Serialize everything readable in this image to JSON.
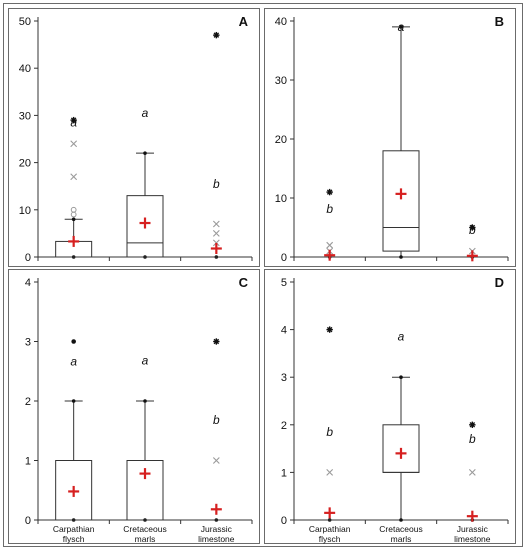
{
  "chart_data": [
    {
      "panel": "A",
      "type": "box",
      "categories": [
        "Carpathian flysch",
        "Cretaceous marls",
        "Jurassic limestone"
      ],
      "ylim": [
        0,
        50
      ],
      "yticks": [
        0,
        10,
        20,
        30,
        40,
        50
      ],
      "show_xlabels": false,
      "boxes": [
        {
          "category": "Carpathian flysch",
          "whisker_low": 0,
          "q1": 0,
          "median": 0,
          "q3": 3.3,
          "whisker_high": 8,
          "mean": 3.3,
          "letter": "a",
          "outliers": [
            {
              "value": 29,
              "mark": "star"
            },
            {
              "value": 24,
              "mark": "x"
            },
            {
              "value": 17,
              "mark": "x"
            },
            {
              "value": 10,
              "mark": "circle"
            },
            {
              "value": 9,
              "mark": "circle"
            }
          ]
        },
        {
          "category": "Cretaceous marls",
          "whisker_low": 0,
          "q1": 0,
          "median": 3,
          "q3": 13,
          "whisker_high": 22,
          "mean": 7.2,
          "letter": "a",
          "outliers": []
        },
        {
          "category": "Jurassic limestone",
          "whisker_low": 0,
          "q1": 0,
          "median": 0,
          "q3": 0,
          "whisker_high": 0,
          "mean": 1.8,
          "letter": "b",
          "outliers": [
            {
              "value": 47,
              "mark": "star"
            },
            {
              "value": 7,
              "mark": "x"
            },
            {
              "value": 5,
              "mark": "x"
            },
            {
              "value": 3,
              "mark": "x"
            }
          ]
        }
      ]
    },
    {
      "panel": "B",
      "type": "box",
      "categories": [
        "Carpathian flysch",
        "Cretaceous marls",
        "Jurassic limestone"
      ],
      "ylim": [
        0,
        40
      ],
      "yticks": [
        0,
        10,
        20,
        30,
        40
      ],
      "show_xlabels": false,
      "boxes": [
        {
          "category": "Carpathian flysch",
          "whisker_low": 0,
          "q1": 0,
          "median": 0,
          "q3": 0,
          "whisker_high": 0,
          "mean": 0.3,
          "letter": "b",
          "outliers": [
            {
              "value": 11,
              "mark": "star"
            },
            {
              "value": 2,
              "mark": "x"
            },
            {
              "value": 1,
              "mark": "x"
            }
          ]
        },
        {
          "category": "Cretaceous marls",
          "whisker_low": 0,
          "q1": 1,
          "median": 5,
          "q3": 18,
          "whisker_high": 39,
          "mean": 10.7,
          "letter": "a",
          "outliers": []
        },
        {
          "category": "Jurassic limestone",
          "whisker_low": 0,
          "q1": 0,
          "median": 0,
          "q3": 0,
          "whisker_high": 0,
          "mean": 0.2,
          "letter": "b",
          "outliers": [
            {
              "value": 5,
              "mark": "star"
            },
            {
              "value": 1,
              "mark": "x"
            }
          ]
        }
      ]
    },
    {
      "panel": "C",
      "type": "box",
      "categories": [
        "Carpathian flysch",
        "Cretaceous marls",
        "Jurassic limestone"
      ],
      "xlabels": [
        [
          "Carpathian",
          "flysch"
        ],
        [
          "Cretaceous",
          "marls"
        ],
        [
          "Jurassic",
          "limestone"
        ]
      ],
      "ylim": [
        0,
        4
      ],
      "yticks": [
        0,
        1,
        2,
        3,
        4
      ],
      "show_xlabels": true,
      "boxes": [
        {
          "category": "Carpathian flysch",
          "whisker_low": 0,
          "q1": 0,
          "median": 0,
          "q3": 1,
          "whisker_high": 2,
          "mean": 0.48,
          "letter": "a",
          "outliers": [
            {
              "value": 3,
              "mark": "dot"
            }
          ]
        },
        {
          "category": "Cretaceous marls",
          "whisker_low": 0,
          "q1": 0,
          "median": 1,
          "q3": 1,
          "whisker_high": 2,
          "mean": 0.78,
          "letter": "a",
          "outliers": []
        },
        {
          "category": "Jurassic limestone",
          "whisker_low": 0,
          "q1": 0,
          "median": 0,
          "q3": 0,
          "whisker_high": 0,
          "mean": 0.18,
          "letter": "b",
          "outliers": [
            {
              "value": 3,
              "mark": "star"
            },
            {
              "value": 1,
              "mark": "x"
            }
          ]
        }
      ]
    },
    {
      "panel": "D",
      "type": "box",
      "categories": [
        "Carpathian flysch",
        "Cretaceous marls",
        "Jurassic limestone"
      ],
      "xlabels": [
        [
          "Carpathian",
          "flysch"
        ],
        [
          "Cretaceous",
          "marls"
        ],
        [
          "Jurassic",
          "limestone"
        ]
      ],
      "ylim": [
        0,
        5
      ],
      "yticks": [
        0,
        1,
        2,
        3,
        4,
        5
      ],
      "show_xlabels": true,
      "boxes": [
        {
          "category": "Carpathian flysch",
          "whisker_low": 0,
          "q1": 0,
          "median": 0,
          "q3": 0,
          "whisker_high": 0,
          "mean": 0.15,
          "letter": "b",
          "outliers": [
            {
              "value": 4,
              "mark": "star"
            },
            {
              "value": 1,
              "mark": "x"
            }
          ]
        },
        {
          "category": "Cretaceous marls",
          "whisker_low": 0,
          "q1": 1,
          "median": 1,
          "q3": 2,
          "whisker_high": 3,
          "mean": 1.4,
          "letter": "a",
          "outliers": []
        },
        {
          "category": "Jurassic limestone",
          "whisker_low": 0,
          "q1": 0,
          "median": 0,
          "q3": 0,
          "whisker_high": 0,
          "mean": 0.08,
          "letter": "b",
          "outliers": [
            {
              "value": 2,
              "mark": "star"
            },
            {
              "value": 1,
              "mark": "x"
            }
          ]
        }
      ]
    }
  ],
  "colors": {
    "frame": "#6b6b6b",
    "axis": "#333333",
    "box": "#333333",
    "mean": "#d62020",
    "star": "#111111",
    "x_mark": "#9a9a9a",
    "circle": "#9a9a9a",
    "text": "#111111"
  }
}
